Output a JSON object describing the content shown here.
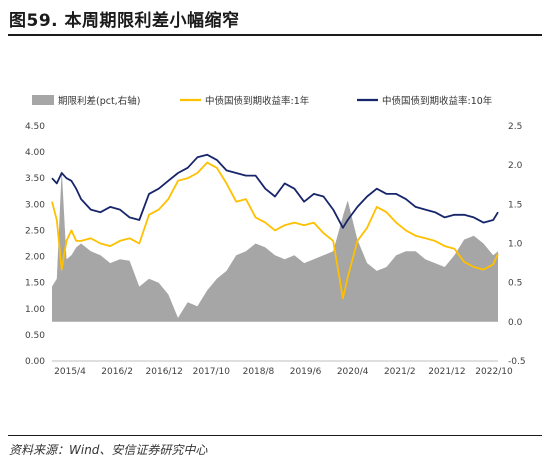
{
  "title": "图59. 本周期限利差小幅缩窄",
  "source": "资料来源：Wind、安信证券研究中心",
  "colors": {
    "spread": "#a6a6a6",
    "y1": "#ffc000",
    "y10": "#17256b"
  },
  "chart_data": {
    "type": "line",
    "legend": {
      "placement": "top",
      "items": [
        "期限利差(pct,右轴)",
        "中债国债到期收益率:1年",
        "中债国债到期收益率:10年"
      ]
    },
    "left_axis": {
      "ylim": [
        0,
        4.5
      ],
      "ticks": [
        "0.00",
        "0.50",
        "1.00",
        "1.50",
        "2.00",
        "2.50",
        "3.00",
        "3.50",
        "4.00",
        "4.50"
      ]
    },
    "right_axis": {
      "ylim": [
        -0.5,
        2.5
      ],
      "ticks": [
        "-0.5",
        "0.0",
        "0.5",
        "1.0",
        "1.5",
        "2.0",
        "2.5"
      ]
    },
    "x_tick_labels": [
      "2015/4",
      "2016/2",
      "2016/12",
      "2017/10",
      "2018/8",
      "2019/6",
      "2020/4",
      "2021/2",
      "2021/12",
      "2022/10"
    ],
    "x_range": [
      "2015-04",
      "2022-12"
    ],
    "series": [
      {
        "name": "期限利差(pct,右轴)",
        "axis": "right",
        "kind": "area",
        "x": [
          "2015-04",
          "2015-05",
          "2015-06",
          "2015-07",
          "2015-08",
          "2015-09",
          "2015-10",
          "2015-12",
          "2016-02",
          "2016-04",
          "2016-06",
          "2016-08",
          "2016-10",
          "2016-12",
          "2017-02",
          "2017-04",
          "2017-06",
          "2017-08",
          "2017-10",
          "2017-12",
          "2018-02",
          "2018-04",
          "2018-06",
          "2018-08",
          "2018-10",
          "2018-12",
          "2019-02",
          "2019-04",
          "2019-06",
          "2019-08",
          "2019-10",
          "2019-12",
          "2020-02",
          "2020-04",
          "2020-05",
          "2020-07",
          "2020-09",
          "2020-11",
          "2021-01",
          "2021-03",
          "2021-05",
          "2021-07",
          "2021-09",
          "2021-11",
          "2022-01",
          "2022-03",
          "2022-05",
          "2022-07",
          "2022-09",
          "2022-11",
          "2022-12"
        ],
        "values": [
          0.45,
          0.55,
          1.95,
          0.8,
          0.85,
          0.95,
          1.0,
          0.9,
          0.85,
          0.75,
          0.8,
          0.78,
          0.45,
          0.55,
          0.5,
          0.35,
          0.05,
          0.25,
          0.2,
          0.4,
          0.55,
          0.65,
          0.85,
          0.9,
          1.0,
          0.95,
          0.85,
          0.8,
          0.85,
          0.75,
          0.8,
          0.85,
          0.9,
          1.35,
          1.55,
          1.05,
          0.75,
          0.65,
          0.7,
          0.85,
          0.9,
          0.9,
          0.8,
          0.75,
          0.7,
          0.85,
          1.05,
          1.1,
          1.0,
          0.85,
          0.9
        ]
      },
      {
        "name": "中债国债到期收益率:1年",
        "axis": "left",
        "x": [
          "2015-04",
          "2015-05",
          "2015-06",
          "2015-07",
          "2015-08",
          "2015-09",
          "2015-10",
          "2015-12",
          "2016-02",
          "2016-04",
          "2016-06",
          "2016-08",
          "2016-10",
          "2016-12",
          "2017-02",
          "2017-04",
          "2017-06",
          "2017-08",
          "2017-10",
          "2017-12",
          "2018-02",
          "2018-04",
          "2018-06",
          "2018-08",
          "2018-10",
          "2018-12",
          "2019-02",
          "2019-04",
          "2019-06",
          "2019-08",
          "2019-10",
          "2019-12",
          "2020-02",
          "2020-04",
          "2020-05",
          "2020-07",
          "2020-09",
          "2020-11",
          "2021-01",
          "2021-03",
          "2021-05",
          "2021-07",
          "2021-09",
          "2021-11",
          "2022-01",
          "2022-03",
          "2022-05",
          "2022-07",
          "2022-09",
          "2022-11",
          "2022-12"
        ],
        "values": [
          3.05,
          2.7,
          1.75,
          2.3,
          2.5,
          2.3,
          2.3,
          2.35,
          2.25,
          2.2,
          2.3,
          2.35,
          2.25,
          2.8,
          2.9,
          3.1,
          3.45,
          3.5,
          3.6,
          3.8,
          3.7,
          3.4,
          3.05,
          3.1,
          2.75,
          2.65,
          2.5,
          2.6,
          2.65,
          2.6,
          2.65,
          2.45,
          2.3,
          1.2,
          1.6,
          2.3,
          2.55,
          2.95,
          2.85,
          2.65,
          2.5,
          2.4,
          2.35,
          2.3,
          2.2,
          2.15,
          1.9,
          1.8,
          1.75,
          1.85,
          2.05
        ]
      },
      {
        "name": "中债国债到期收益率:10年",
        "axis": "left",
        "x": [
          "2015-04",
          "2015-05",
          "2015-06",
          "2015-07",
          "2015-08",
          "2015-09",
          "2015-10",
          "2015-12",
          "2016-02",
          "2016-04",
          "2016-06",
          "2016-08",
          "2016-10",
          "2016-12",
          "2017-02",
          "2017-04",
          "2017-06",
          "2017-08",
          "2017-10",
          "2017-12",
          "2018-02",
          "2018-04",
          "2018-06",
          "2018-08",
          "2018-10",
          "2018-12",
          "2019-02",
          "2019-04",
          "2019-06",
          "2019-08",
          "2019-10",
          "2019-12",
          "2020-02",
          "2020-04",
          "2020-05",
          "2020-07",
          "2020-09",
          "2020-11",
          "2021-01",
          "2021-03",
          "2021-05",
          "2021-07",
          "2021-09",
          "2021-11",
          "2022-01",
          "2022-03",
          "2022-05",
          "2022-07",
          "2022-09",
          "2022-11",
          "2022-12"
        ],
        "values": [
          3.5,
          3.4,
          3.6,
          3.5,
          3.45,
          3.3,
          3.1,
          2.9,
          2.85,
          2.95,
          2.9,
          2.75,
          2.7,
          3.2,
          3.3,
          3.45,
          3.6,
          3.7,
          3.9,
          3.95,
          3.85,
          3.65,
          3.6,
          3.55,
          3.55,
          3.3,
          3.15,
          3.4,
          3.3,
          3.05,
          3.2,
          3.15,
          2.9,
          2.55,
          2.7,
          2.95,
          3.15,
          3.3,
          3.2,
          3.2,
          3.1,
          2.95,
          2.9,
          2.85,
          2.75,
          2.8,
          2.8,
          2.75,
          2.65,
          2.7,
          2.85
        ]
      }
    ]
  }
}
